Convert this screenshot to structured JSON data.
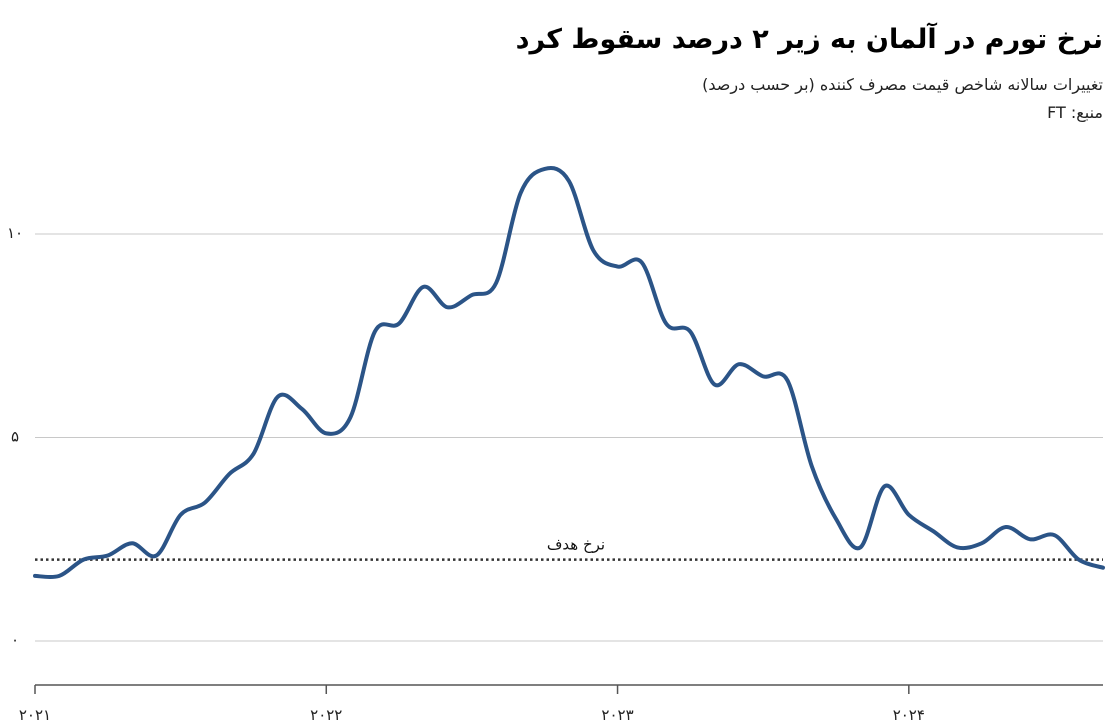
{
  "header": {
    "title": "نرخ تورم در آلمان به زیر ۲ درصد سقوط کرد",
    "subtitle": "تغییرات سالانه شاخص قیمت مصرف کننده (بر حسب درصد)",
    "source": "منبع: FT"
  },
  "chart_data": {
    "type": "line",
    "title": "نرخ تورم در آلمان به زیر ۲ درصد سقوط کرد",
    "subtitle": "تغییرات سالانه شاخص قیمت مصرف کننده (بر حسب درصد)",
    "xlabel": "",
    "ylabel": "",
    "ylim": [
      0,
      12.5
    ],
    "xlim": [
      "2021-01",
      "2024-09"
    ],
    "grid": true,
    "series_color": "#2b5487",
    "y_ticks": [
      {
        "value": 0,
        "label": "۰"
      },
      {
        "value": 5,
        "label": "۵"
      },
      {
        "value": 10,
        "label": "۱۰"
      }
    ],
    "x_ticks": [
      {
        "value": "2021-01",
        "label": "۲۰۲۱"
      },
      {
        "value": "2022-01",
        "label": "۲۰۲۲"
      },
      {
        "value": "2023-01",
        "label": "۲۰۲۳"
      },
      {
        "value": "2024-01",
        "label": "۲۰۲۴"
      }
    ],
    "target": {
      "value": 2.0,
      "label": "نرخ هدف"
    },
    "x": [
      "2021-01",
      "2021-02",
      "2021-03",
      "2021-04",
      "2021-05",
      "2021-06",
      "2021-07",
      "2021-08",
      "2021-09",
      "2021-10",
      "2021-11",
      "2021-12",
      "2022-01",
      "2022-02",
      "2022-03",
      "2022-04",
      "2022-05",
      "2022-06",
      "2022-07",
      "2022-08",
      "2022-09",
      "2022-10",
      "2022-11",
      "2022-12",
      "2023-01",
      "2023-02",
      "2023-03",
      "2023-04",
      "2023-05",
      "2023-06",
      "2023-07",
      "2023-08",
      "2023-09",
      "2023-10",
      "2023-11",
      "2023-12",
      "2024-01",
      "2024-02",
      "2024-03",
      "2024-04",
      "2024-05",
      "2024-06",
      "2024-07",
      "2024-08",
      "2024-09"
    ],
    "values": [
      1.6,
      1.6,
      2.0,
      2.1,
      2.4,
      2.1,
      3.1,
      3.4,
      4.1,
      4.6,
      6.0,
      5.7,
      5.1,
      5.5,
      7.6,
      7.8,
      8.7,
      8.2,
      8.5,
      8.8,
      11.0,
      11.6,
      11.3,
      9.6,
      9.2,
      9.3,
      7.8,
      7.6,
      6.3,
      6.8,
      6.5,
      6.4,
      4.3,
      3.0,
      2.3,
      3.8,
      3.1,
      2.7,
      2.3,
      2.4,
      2.8,
      2.5,
      2.6,
      2.0,
      1.8
    ]
  }
}
